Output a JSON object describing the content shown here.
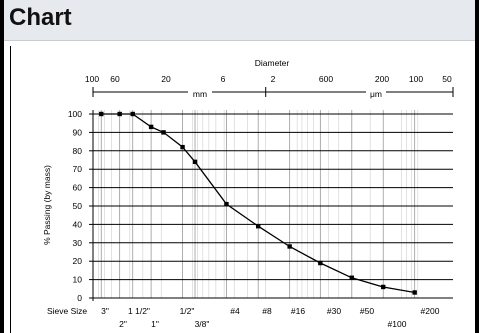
{
  "page": {
    "title": "Chart"
  },
  "chart_data": {
    "type": "line",
    "title": "",
    "xlabel": "",
    "ylabel": "% Passing (by mass)",
    "ylim": [
      0,
      100
    ],
    "yticks": [
      0,
      10,
      20,
      30,
      40,
      50,
      60,
      70,
      80,
      90,
      100
    ],
    "grid": true,
    "x_scale": "log (reversed)",
    "top_axis": {
      "caption": "Diameter",
      "mm_unit": "mm",
      "um_unit": "μm",
      "mm_ticks": [
        {
          "label": "100",
          "value": 100
        },
        {
          "label": "60",
          "value": 60
        },
        {
          "label": "20",
          "value": 20
        },
        {
          "label": "6",
          "value": 6
        },
        {
          "label": "2",
          "value": 2
        }
      ],
      "um_ticks": [
        {
          "label": "600",
          "value": 0.6
        },
        {
          "label": "200",
          "value": 0.2
        },
        {
          "label": "100",
          "value": 0.1
        },
        {
          "label": "50",
          "value": 0.05
        }
      ]
    },
    "sieve_axis": {
      "caption": "Sieve Size",
      "sieves": [
        {
          "label": "3\"",
          "mm": 75,
          "row": 1
        },
        {
          "label": "2\"",
          "mm": 50,
          "row": 2
        },
        {
          "label": "1 1/2\"",
          "mm": 37.5,
          "row": 1
        },
        {
          "label": "1\"",
          "mm": 25,
          "row": 2
        },
        {
          "label": "1/2\"",
          "mm": 12.5,
          "row": 1
        },
        {
          "label": "3/8\"",
          "mm": 9.5,
          "row": 2
        },
        {
          "label": "#4",
          "mm": 4.75,
          "row": 1
        },
        {
          "label": "#8",
          "mm": 2.36,
          "row": 1
        },
        {
          "label": "#16",
          "mm": 1.18,
          "row": 1
        },
        {
          "label": "#30",
          "mm": 0.6,
          "row": 1
        },
        {
          "label": "#50",
          "mm": 0.3,
          "row": 1
        },
        {
          "label": "#100",
          "mm": 0.15,
          "row": 2
        },
        {
          "label": "#200",
          "mm": 0.075,
          "row": 1
        }
      ]
    },
    "series": [
      {
        "values": [
          {
            "x": 75,
            "y": 100
          },
          {
            "x": 50,
            "y": 100
          },
          {
            "x": 37.5,
            "y": 100
          },
          {
            "x": 25,
            "y": 93
          },
          {
            "x": 19,
            "y": 90
          },
          {
            "x": 12.5,
            "y": 82
          },
          {
            "x": 9.5,
            "y": 74
          },
          {
            "x": 4.75,
            "y": 51
          },
          {
            "x": 2.36,
            "y": 39
          },
          {
            "x": 1.18,
            "y": 28
          },
          {
            "x": 0.6,
            "y": 19
          },
          {
            "x": 0.3,
            "y": 11
          },
          {
            "x": 0.15,
            "y": 6
          },
          {
            "x": 0.075,
            "y": 3
          }
        ]
      }
    ]
  }
}
